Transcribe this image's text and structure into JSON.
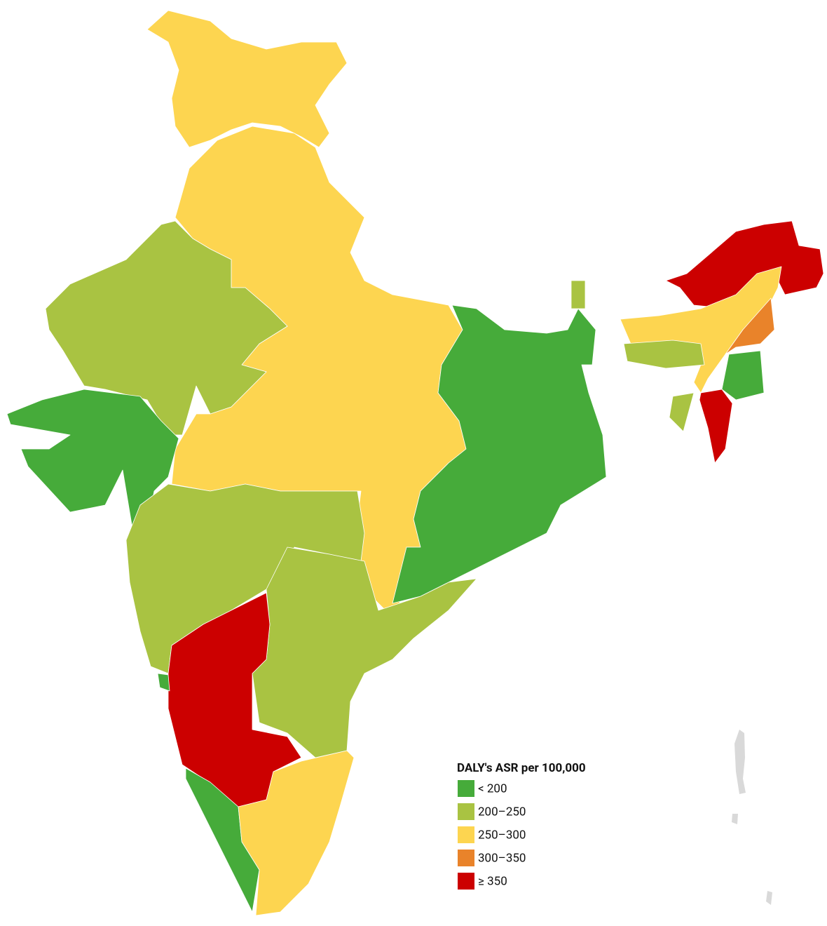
{
  "legend": {
    "title": "DALY's ASR per 100,000",
    "items": [
      {
        "label": "< 200",
        "color": "#46ab3a"
      },
      {
        "label": "200–250",
        "color": "#a9c342"
      },
      {
        "label": "250–300",
        "color": "#fdd550"
      },
      {
        "label": "300–350",
        "color": "#e9832a"
      },
      {
        "label": "≥ 350",
        "color": "#cc0000"
      }
    ]
  }
}
